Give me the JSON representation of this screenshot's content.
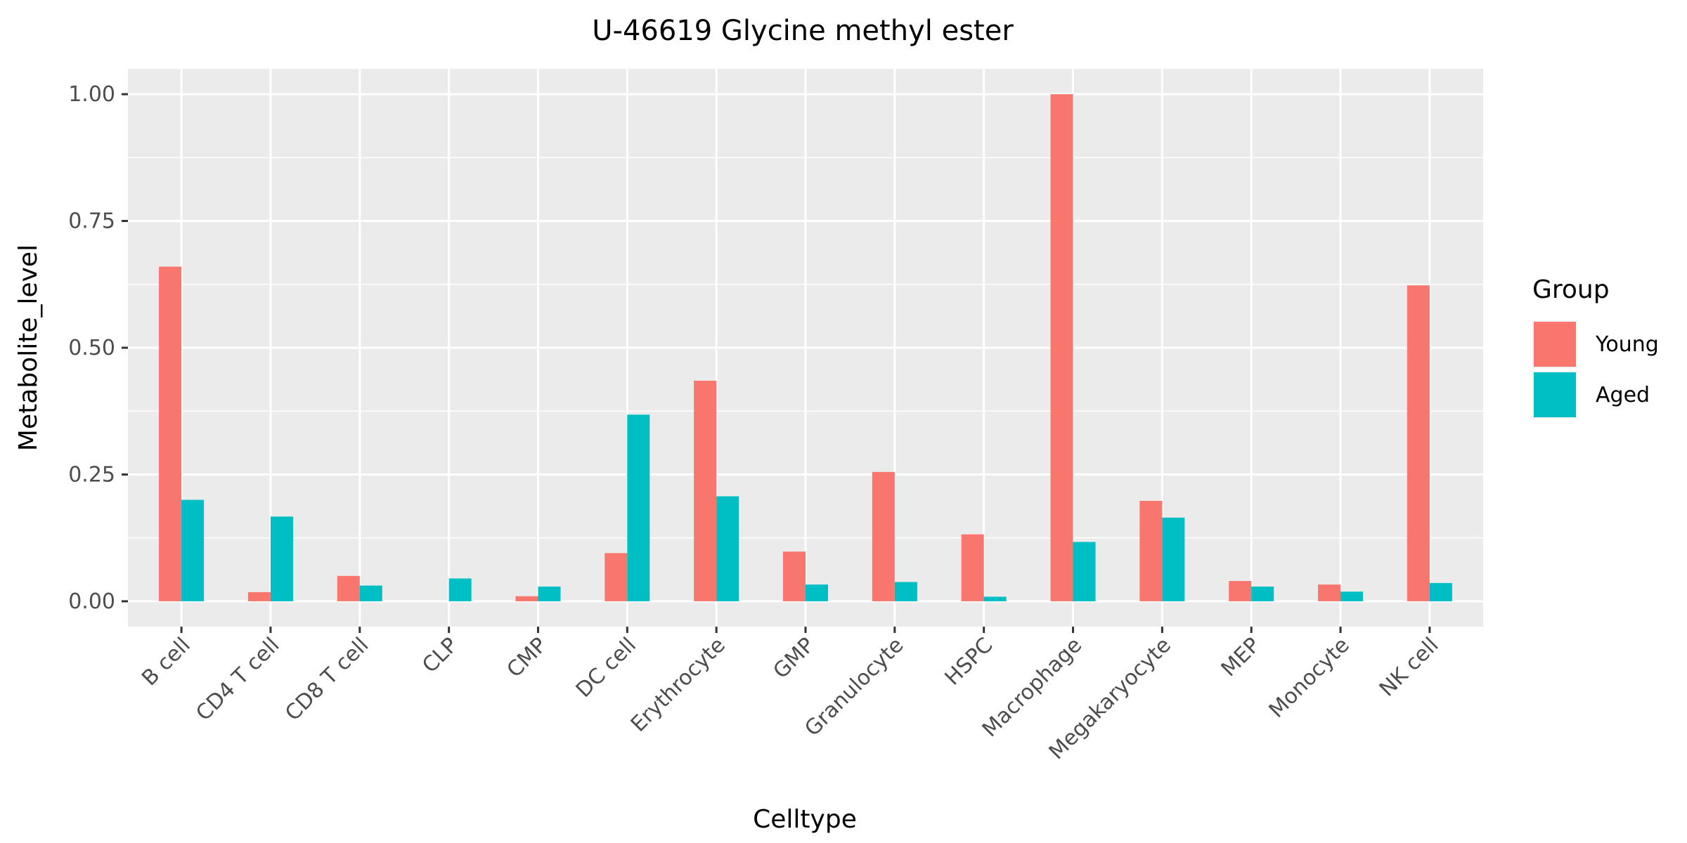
{
  "chart_data": {
    "type": "bar",
    "title": "U-46619 Glycine methyl ester",
    "xlabel": "Celltype",
    "ylabel": "Metabolite_level",
    "ylim": [
      -0.05,
      1.05
    ],
    "yticks": [
      0.0,
      0.25,
      0.5,
      0.75,
      1.0
    ],
    "ytick_labels": [
      "0.00",
      "0.25",
      "0.50",
      "0.75",
      "1.00"
    ],
    "grid": true,
    "legend": {
      "title": "Group",
      "position": "right"
    },
    "categories": [
      "B cell",
      "CD4 T cell",
      "CD8 T cell",
      "CLP",
      "CMP",
      "DC cell",
      "Erythrocyte",
      "GMP",
      "Granulocyte",
      "HSPC",
      "Macrophage",
      "Megakaryocyte",
      "MEP",
      "Monocyte",
      "NK cell"
    ],
    "series": [
      {
        "name": "Young",
        "color": "#F8766D",
        "values": [
          0.66,
          0.018,
          0.05,
          0.0,
          0.01,
          0.095,
          0.435,
          0.098,
          0.255,
          0.132,
          1.0,
          0.198,
          0.04,
          0.033,
          0.623
        ]
      },
      {
        "name": "Aged",
        "color": "#00BFC4",
        "values": [
          0.2,
          0.167,
          0.031,
          0.045,
          0.029,
          0.368,
          0.207,
          0.033,
          0.038,
          0.009,
          0.117,
          0.165,
          0.029,
          0.019,
          0.036
        ]
      }
    ]
  }
}
